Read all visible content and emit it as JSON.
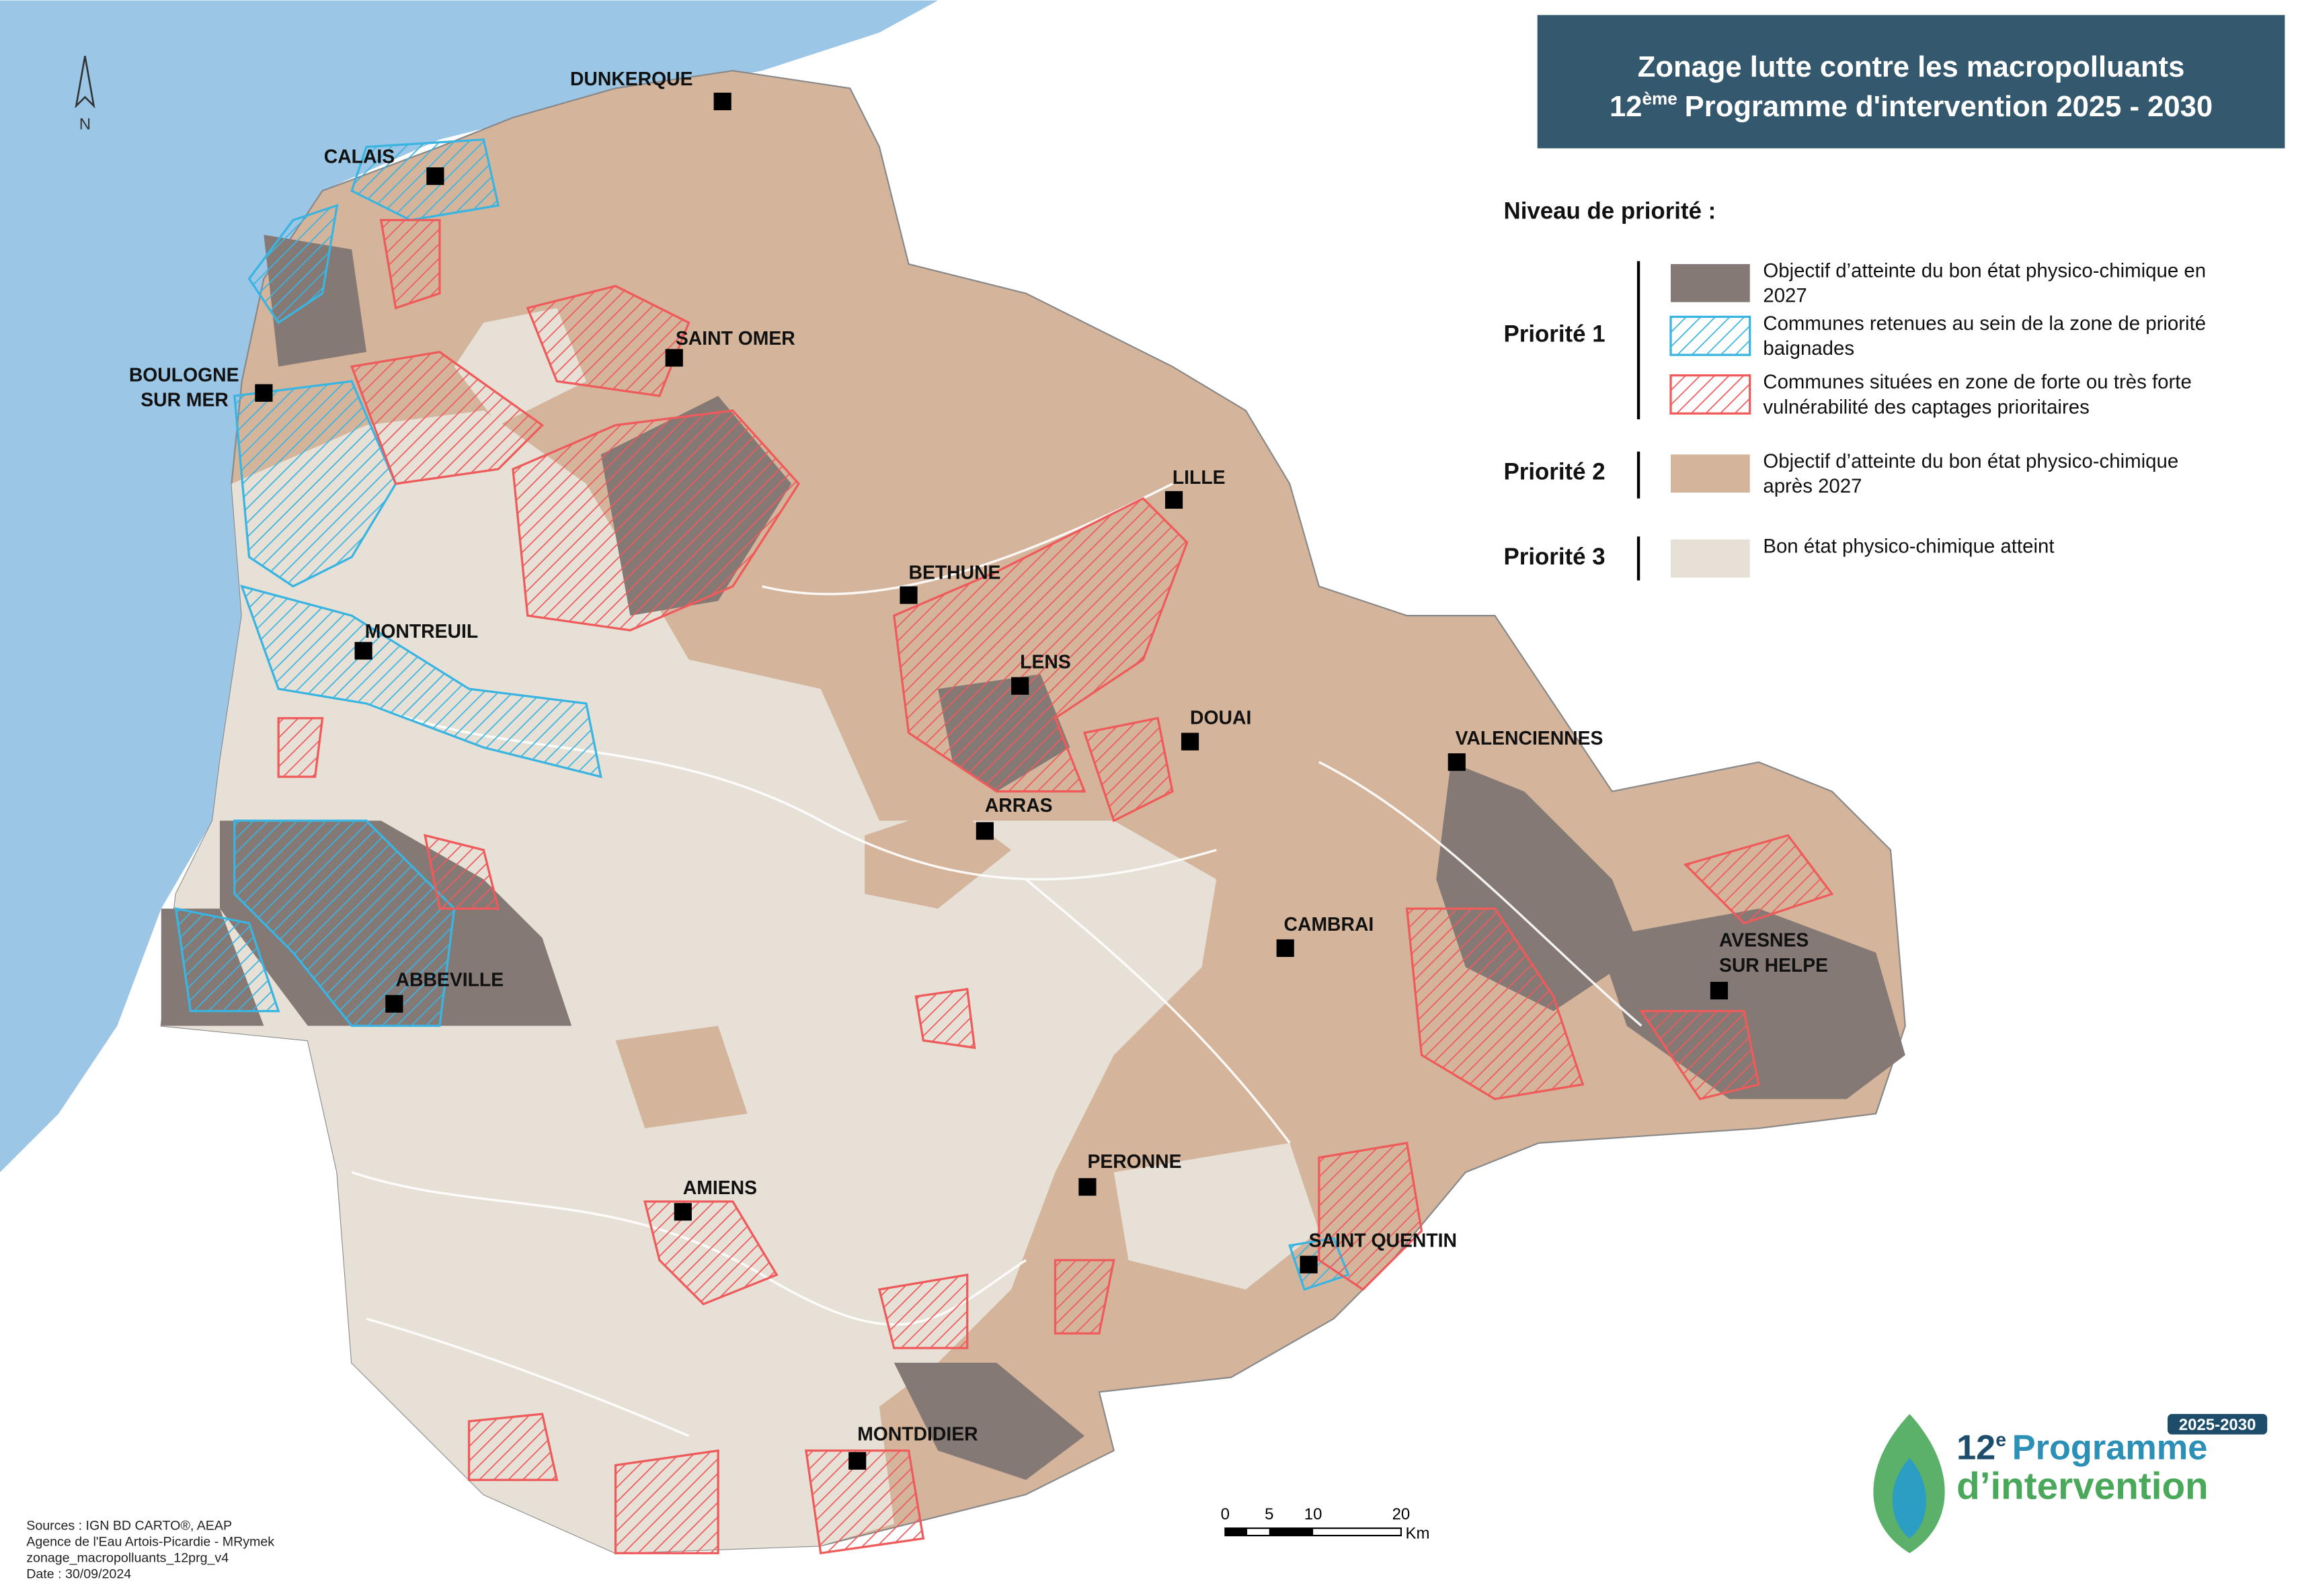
{
  "title": {
    "line1": "Zonage lutte contre les macropolluants",
    "line2_number": "12",
    "line2_superscript": "ème",
    "line2_text": "Programme d'intervention 2025 - 2030"
  },
  "north": "N",
  "legend": {
    "heading": "Niveau de priorité :",
    "groups": [
      {
        "label": "Priorité 1",
        "items": [
          [
            "Objectif d’atteinte du bon état physico-chimique en",
            "2027"
          ],
          [
            "Communes retenues au sein de la zone de priorité",
            "baignades"
          ],
          [
            "Communes situées en zone de forte ou très forte",
            "vulnérabilité des captages prioritaires"
          ]
        ]
      },
      {
        "label": "Priorité 2",
        "items": [
          [
            "Objectif d’atteinte du bon état physico-chimique",
            "après 2027"
          ]
        ]
      },
      {
        "label": "Priorité 3",
        "items": [
          [
            "Bon état physico-chimique atteint"
          ]
        ]
      }
    ]
  },
  "cities": [
    [
      "DUNKERQUE"
    ],
    [
      "CALAIS"
    ],
    [
      "SAINT OMER"
    ],
    [
      "BOULOGNE",
      "SUR MER"
    ],
    [
      "MONTREUIL"
    ],
    [
      "LILLE"
    ],
    [
      "BETHUNE"
    ],
    [
      "LENS"
    ],
    [
      "DOUAI"
    ],
    [
      "VALENCIENNES"
    ],
    [
      "ARRAS"
    ],
    [
      "CAMBRAI"
    ],
    [
      "AVESNES",
      "SUR HELPE"
    ],
    [
      "ABBEVILLE"
    ],
    [
      "PERONNE"
    ],
    [
      "AMIENS"
    ],
    [
      "SAINT QUENTIN"
    ],
    [
      "MONTDIDIER"
    ]
  ],
  "scale": {
    "labels": [
      "0",
      "5",
      "10",
      "20"
    ],
    "unit": "Km"
  },
  "sources": [
    "Sources : IGN BD CARTO®, AEAP",
    "Agence de l'Eau Artois-Picardie - MRymek",
    "zonage_macropolluants_12prg_v4",
    "Date : 30/09/2024"
  ],
  "logo": {
    "badge": "2025-2030",
    "number": "12",
    "superscript": "e",
    "line1": "Programme",
    "line2": "d’intervention"
  }
}
